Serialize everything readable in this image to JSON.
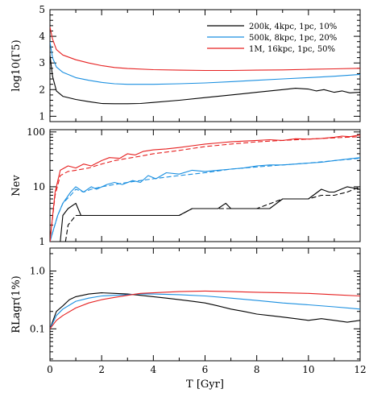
{
  "chart_data": [
    {
      "type": "line",
      "ylabel": "log10(Γ5)",
      "ylim": [
        0.8,
        5.0
      ],
      "y_ticks": [
        "1",
        "2",
        "3",
        "4",
        "5"
      ],
      "xlim": [
        0,
        12
      ],
      "legend": {
        "placement": "top-right",
        "entries": [
          "200k, 4kpc, 1pc, 10%",
          "500k, 8kpc, 1pc, 20%",
          "1M, 16kpc, 1pc, 50%"
        ]
      },
      "series": [
        {
          "name": "200k, 4kpc, 1pc, 10%",
          "color": "#000000",
          "style": "solid",
          "x": [
            0,
            0.1,
            0.25,
            0.5,
            1,
            1.5,
            2,
            2.5,
            3,
            3.5,
            4,
            5,
            6,
            7,
            7.5,
            8,
            8.5,
            9,
            9.5,
            10,
            10.3,
            10.6,
            11,
            11.3,
            11.6,
            12
          ],
          "y": [
            3.3,
            2.5,
            1.95,
            1.75,
            1.63,
            1.55,
            1.48,
            1.47,
            1.47,
            1.48,
            1.52,
            1.6,
            1.7,
            1.8,
            1.85,
            1.9,
            1.95,
            2.0,
            2.05,
            2.02,
            1.95,
            2.0,
            1.9,
            1.95,
            1.88,
            1.9
          ]
        },
        {
          "name": "500k, 8kpc, 1pc, 20%",
          "color": "#1a8fe0",
          "style": "solid",
          "x": [
            0,
            0.1,
            0.25,
            0.5,
            1,
            1.5,
            2,
            2.5,
            3,
            4,
            5,
            6,
            7,
            8,
            9,
            10,
            11,
            12
          ],
          "y": [
            3.8,
            3.2,
            2.85,
            2.65,
            2.45,
            2.35,
            2.27,
            2.22,
            2.2,
            2.2,
            2.22,
            2.25,
            2.3,
            2.35,
            2.4,
            2.45,
            2.5,
            2.57
          ]
        },
        {
          "name": "1M, 16kpc, 1pc, 50%",
          "color": "#e62020",
          "style": "solid",
          "x": [
            0,
            0.1,
            0.25,
            0.5,
            1,
            1.5,
            2,
            2.5,
            3,
            4,
            5,
            6,
            7,
            8,
            9,
            10,
            11,
            12
          ],
          "y": [
            4.35,
            3.9,
            3.5,
            3.3,
            3.12,
            3.0,
            2.9,
            2.83,
            2.79,
            2.75,
            2.73,
            2.72,
            2.72,
            2.73,
            2.74,
            2.76,
            2.78,
            2.8
          ]
        }
      ]
    },
    {
      "type": "line",
      "ylabel": "Nev",
      "yscale": "log",
      "ylim": [
        1,
        110
      ],
      "y_ticks": [
        "1",
        "10",
        "100"
      ],
      "xlim": [
        0,
        12
      ],
      "series": [
        {
          "color": "#000000",
          "style": "solid",
          "x": [
            0.4,
            0.5,
            0.7,
            1.0,
            1.2,
            1.5,
            2,
            3,
            4,
            5,
            5.5,
            6,
            6.5,
            6.8,
            7.0,
            7.5,
            8,
            8.5,
            9.0,
            9.5,
            10.0,
            10.5,
            10.8,
            11.0,
            11.5,
            12
          ],
          "y": [
            1,
            3,
            4,
            5,
            3,
            3,
            3,
            3,
            3,
            3,
            4,
            4,
            4,
            5,
            4,
            4,
            4,
            4,
            6,
            6,
            6,
            9,
            8,
            8,
            10,
            9
          ]
        },
        {
          "color": "#000000",
          "style": "dashed",
          "x": [
            0.6,
            0.7,
            1.0,
            1.1,
            1.5,
            2,
            3,
            4,
            5,
            5.5,
            6,
            6.5,
            7,
            7.5,
            8,
            9,
            10,
            10.5,
            11,
            11.5,
            12
          ],
          "y": [
            1,
            2,
            3,
            3,
            3,
            3,
            3,
            3,
            3,
            4,
            4,
            4,
            4,
            4,
            4,
            6,
            6,
            7,
            7,
            8,
            10
          ]
        },
        {
          "color": "#1a8fe0",
          "style": "solid",
          "x": [
            0,
            0.3,
            0.5,
            0.8,
            1.0,
            1.3,
            1.6,
            1.8,
            2.2,
            2.5,
            2.8,
            3.2,
            3.5,
            3.8,
            4.1,
            4.5,
            5,
            5.5,
            6,
            6.5,
            7,
            7.5,
            8,
            8.5,
            9,
            9.5,
            10,
            10.5,
            11,
            11.5,
            12
          ],
          "y": [
            1,
            3,
            5,
            8,
            10,
            8,
            10,
            9,
            11,
            12,
            11,
            13,
            12,
            16,
            14,
            18,
            17,
            20,
            19,
            20,
            21,
            22,
            24,
            25,
            25,
            26,
            27,
            28,
            30,
            32,
            34
          ]
        },
        {
          "color": "#1a8fe0",
          "style": "dashed",
          "x": [
            0,
            0.3,
            0.5,
            0.8,
            1.0,
            1.3,
            1.6,
            2,
            2.5,
            3,
            3.5,
            4,
            5,
            6,
            7,
            8,
            9,
            10,
            11,
            12
          ],
          "y": [
            1,
            3,
            5,
            7,
            9,
            8,
            9,
            10,
            11,
            12,
            13,
            14,
            16,
            18,
            21,
            23,
            25,
            27,
            30,
            33
          ]
        },
        {
          "color": "#e62020",
          "style": "solid",
          "x": [
            0,
            0.2,
            0.4,
            0.7,
            1.0,
            1.3,
            1.6,
            2.0,
            2.3,
            2.7,
            3.0,
            3.3,
            3.6,
            4.0,
            4.5,
            5,
            5.5,
            6,
            6.5,
            7,
            7.5,
            8,
            8.5,
            9,
            9.5,
            10,
            10.5,
            11,
            11.3,
            11.6,
            12
          ],
          "y": [
            1,
            8,
            20,
            24,
            22,
            26,
            24,
            30,
            34,
            33,
            40,
            38,
            44,
            47,
            49,
            52,
            56,
            60,
            63,
            66,
            68,
            70,
            72,
            70,
            75,
            74,
            76,
            80,
            84,
            82,
            88
          ]
        },
        {
          "color": "#e62020",
          "style": "dashed",
          "x": [
            0,
            0.2,
            0.4,
            0.7,
            1.0,
            1.5,
            2,
            2.5,
            3,
            3.5,
            4,
            5,
            6,
            7,
            8,
            9,
            10,
            11,
            12
          ],
          "y": [
            1,
            7,
            16,
            19,
            20,
            22,
            26,
            30,
            33,
            36,
            40,
            46,
            54,
            60,
            66,
            70,
            74,
            78,
            82
          ]
        }
      ]
    },
    {
      "type": "line",
      "ylabel": "RLagr(1%)",
      "yscale": "log",
      "ylim": [
        0.028,
        2.5
      ],
      "y_ticks": [
        "0.1",
        "1.0"
      ],
      "xlabel": "T [Gyr]",
      "xlim": [
        0,
        12
      ],
      "x_ticks": [
        "0",
        "2",
        "4",
        "6",
        "8",
        "10",
        "12"
      ],
      "series": [
        {
          "color": "#000000",
          "style": "solid",
          "x": [
            0,
            0.25,
            0.5,
            0.75,
            1,
            1.5,
            2,
            2.5,
            3,
            3.5,
            4,
            4.5,
            5,
            5.5,
            6,
            6.5,
            7,
            7.5,
            8,
            8.5,
            9,
            9.5,
            10,
            10.5,
            11,
            11.5,
            12
          ],
          "y": [
            0.1,
            0.2,
            0.25,
            0.32,
            0.36,
            0.4,
            0.42,
            0.41,
            0.4,
            0.38,
            0.36,
            0.34,
            0.32,
            0.3,
            0.28,
            0.25,
            0.22,
            0.2,
            0.18,
            0.17,
            0.16,
            0.15,
            0.14,
            0.15,
            0.14,
            0.13,
            0.14
          ]
        },
        {
          "color": "#1a8fe0",
          "style": "solid",
          "x": [
            0,
            0.25,
            0.5,
            1,
            1.5,
            2,
            2.5,
            3,
            3.5,
            4,
            5,
            6,
            7,
            8,
            9,
            10,
            11,
            12
          ],
          "y": [
            0.1,
            0.17,
            0.22,
            0.3,
            0.34,
            0.37,
            0.38,
            0.39,
            0.4,
            0.4,
            0.39,
            0.37,
            0.34,
            0.31,
            0.28,
            0.26,
            0.24,
            0.22
          ]
        },
        {
          "color": "#e62020",
          "style": "solid",
          "x": [
            0,
            0.25,
            0.5,
            1,
            1.5,
            2,
            2.5,
            3,
            3.5,
            4,
            5,
            6,
            7,
            8,
            9,
            10,
            11,
            12
          ],
          "y": [
            0.1,
            0.14,
            0.17,
            0.23,
            0.28,
            0.32,
            0.35,
            0.38,
            0.41,
            0.42,
            0.44,
            0.45,
            0.44,
            0.43,
            0.42,
            0.41,
            0.39,
            0.37
          ]
        }
      ]
    }
  ]
}
